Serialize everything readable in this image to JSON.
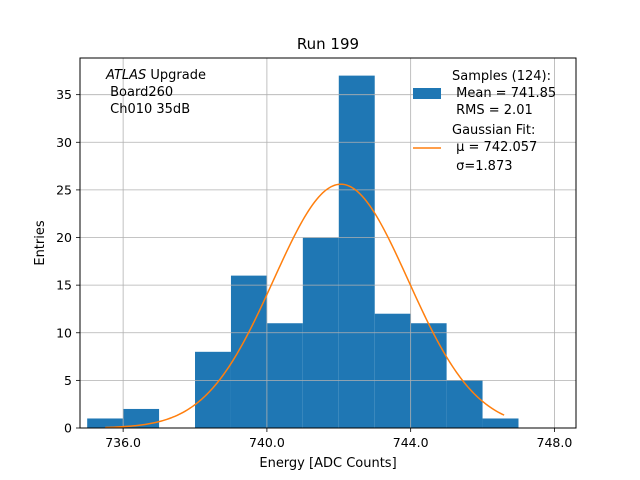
{
  "chart_data": {
    "type": "bar",
    "title": "Run 199",
    "xlabel": "Energy [ADC Counts]",
    "ylabel": "Entries",
    "xlim": [
      734.8,
      748.6
    ],
    "ylim": [
      0,
      38.85
    ],
    "x_ticks": [
      736.0,
      740.0,
      744.0,
      748.0
    ],
    "x_tick_labels": [
      "736.0",
      "740.0",
      "744.0",
      "748.0"
    ],
    "y_ticks": [
      0,
      5,
      10,
      15,
      20,
      25,
      30,
      35
    ],
    "y_tick_labels": [
      "0",
      "5",
      "10",
      "15",
      "20",
      "25",
      "30",
      "35"
    ],
    "grid": true,
    "bin_edges": [
      735,
      736,
      737,
      738,
      739,
      740,
      741,
      742,
      743,
      744,
      745,
      746,
      747
    ],
    "counts": [
      1,
      2,
      0,
      8,
      16,
      11,
      20,
      37,
      12,
      11,
      5,
      1
    ],
    "fit": {
      "mu": 742.057,
      "sigma": 1.873,
      "amplitude": 25.6,
      "x_range": [
        735.5,
        746.6
      ]
    },
    "colors": {
      "hist": "#1f77b4",
      "fit": "#ff7f0e",
      "grid": "#b0b0b0"
    },
    "legend": {
      "placement": "top-right",
      "entries": [
        {
          "lines": [
            "Samples (124):",
            " Mean = 741.85",
            " RMS = 2.01"
          ]
        },
        {
          "lines": [
            "Gaussian Fit:",
            " μ = 742.057",
            " σ=1.873"
          ]
        }
      ]
    },
    "annotation": {
      "italic": "ATLAS",
      "rest": " Upgrade",
      "lines": [
        " Board260",
        " Ch010 35dB"
      ]
    }
  }
}
